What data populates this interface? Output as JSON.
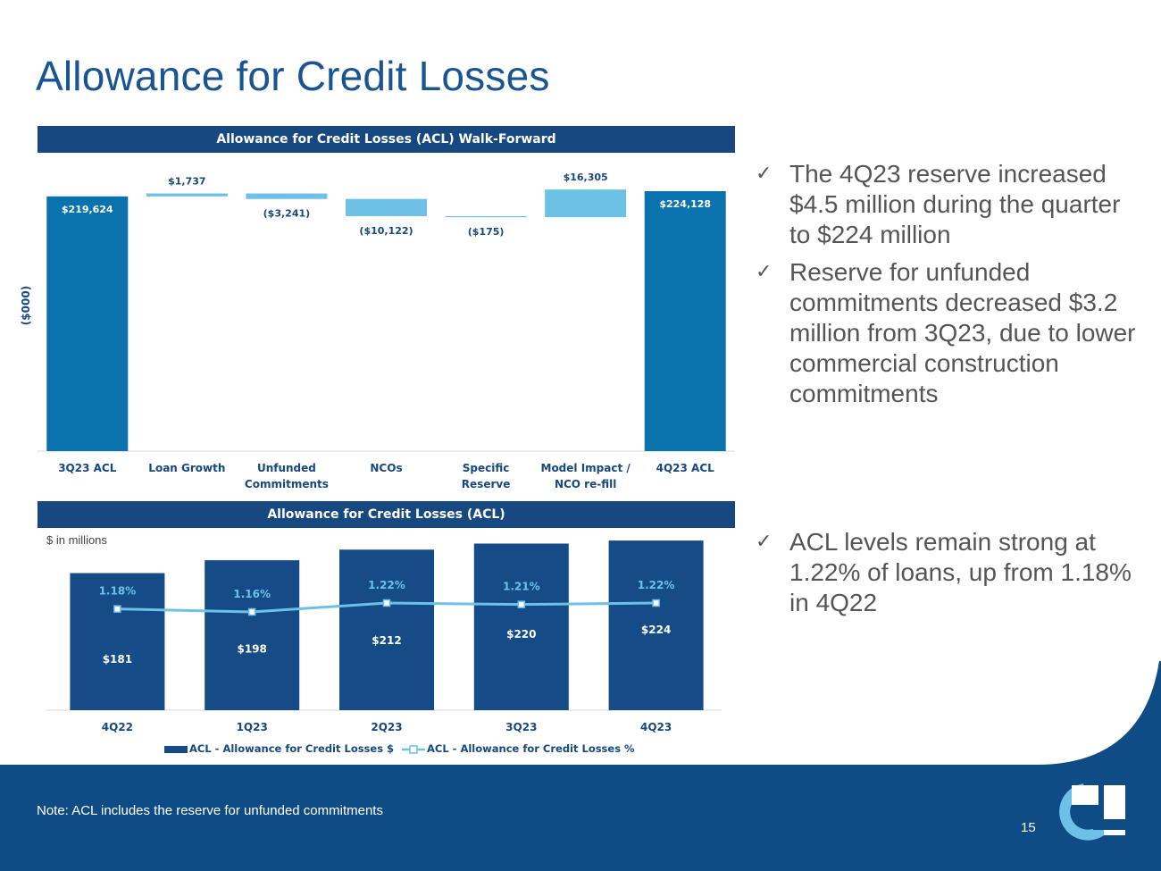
{
  "title": "Allowance for Credit Losses",
  "note": "Note: ACL includes the reserve for unfunded commitments",
  "page_number": "15",
  "bullets": [
    "The 4Q23 reserve increased $4.5 million during the quarter to $224 million",
    "Reserve for unfunded commitments decreased $3.2 million from 3Q23, due to lower commercial construction commitments",
    "ACL levels remain strong at 1.22% of loans, up from 1.18% in 4Q22"
  ],
  "colors": {
    "title": "#1a5491",
    "header_bg": "#17487f",
    "total_bar": "#0a72ac",
    "delta_bar": "#6ec1e6",
    "acl_bar": "#154c88",
    "pct_line": "#6ec1e6",
    "footer_bg": "#0f4c86",
    "logo_light": "#6ec1e6"
  },
  "chart_data": [
    {
      "type": "bar",
      "subtype": "waterfall",
      "title": "Allowance for Credit Losses (ACL) Walk-Forward",
      "ylabel": "($000)",
      "grid": false,
      "categories": [
        "3Q23 ACL",
        "Loan Growth",
        "Unfunded Commitments",
        "NCOs",
        "Specific Reserve",
        "Model Impact / NCO re-fill",
        "4Q23 ACL"
      ],
      "category_lines": [
        [
          "3Q23 ACL"
        ],
        [
          "Loan Growth"
        ],
        [
          "Unfunded",
          "Commitments"
        ],
        [
          "NCOs"
        ],
        [
          "Specific",
          "Reserve"
        ],
        [
          "Model Impact /",
          "NCO re-fill"
        ],
        [
          "4Q23 ACL"
        ]
      ],
      "values": [
        219624,
        1737,
        -3241,
        -10122,
        -175,
        16305,
        224128
      ],
      "kinds": [
        "total",
        "delta",
        "delta",
        "delta",
        "delta",
        "delta",
        "total"
      ],
      "labels": [
        "$219,624",
        "$1,737",
        "($3,241)",
        "($10,122)",
        "($175)",
        "$16,305",
        "$224,128"
      ]
    },
    {
      "type": "bar",
      "title": "Allowance for Credit Losses (ACL)",
      "unit_label": "$ in millions",
      "grid": false,
      "legend_position": "bottom",
      "categories": [
        "4Q22",
        "1Q23",
        "2Q23",
        "3Q23",
        "4Q23"
      ],
      "series": [
        {
          "name": "ACL - Allowance for Credit Losses $",
          "type": "bar",
          "values": [
            181,
            198,
            212,
            220,
            224
          ],
          "labels": [
            "$181",
            "$198",
            "$212",
            "$220",
            "$224"
          ]
        },
        {
          "name": "ACL - Allowance for Credit Losses %",
          "type": "line",
          "values": [
            1.18,
            1.16,
            1.22,
            1.21,
            1.22
          ],
          "labels": [
            "1.18%",
            "1.16%",
            "1.22%",
            "1.21%",
            "1.22%"
          ]
        }
      ]
    }
  ]
}
